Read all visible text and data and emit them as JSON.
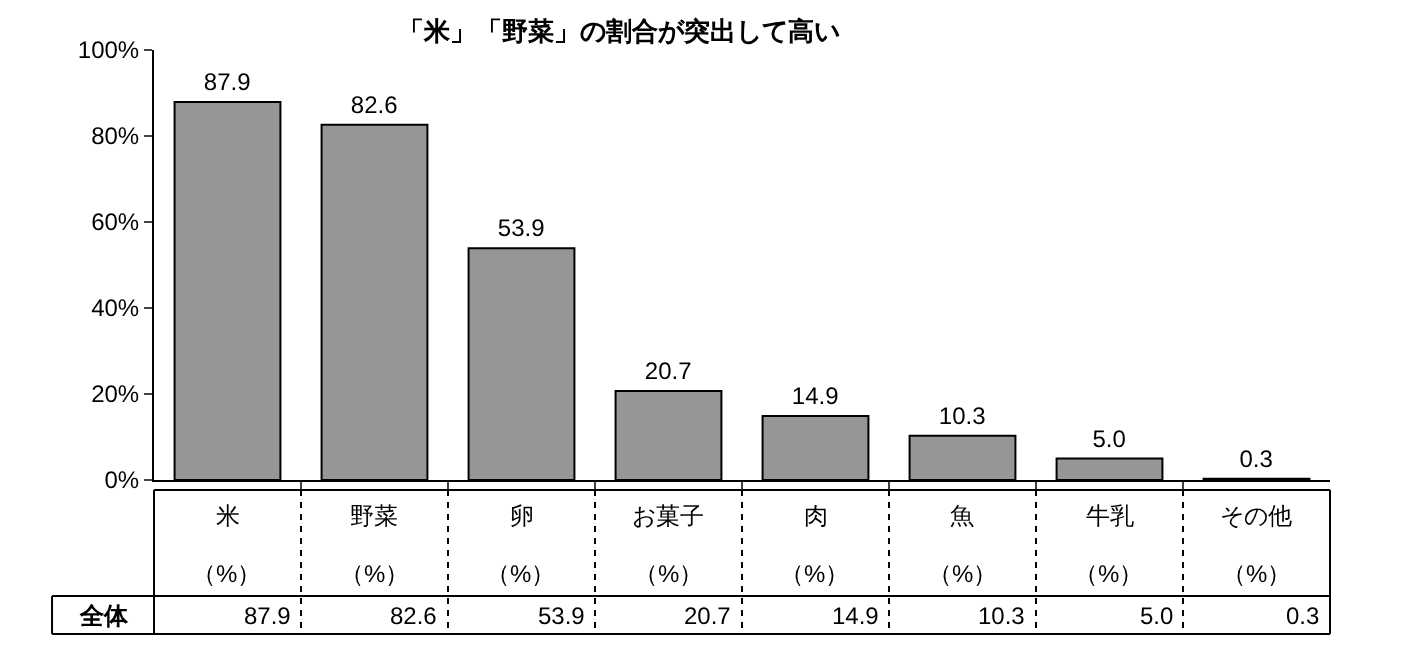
{
  "chart_data": {
    "type": "bar",
    "title": "「米」「野菜」の割合が突出して高い",
    "categories": [
      "米",
      "野菜",
      "卵",
      "お菓子",
      "肉",
      "魚",
      "牛乳",
      "その他"
    ],
    "values": [
      87.9,
      82.6,
      53.9,
      20.7,
      14.9,
      10.3,
      5.0,
      0.3
    ],
    "value_labels": [
      "87.9",
      "82.6",
      "53.9",
      "20.7",
      "14.9",
      "10.3",
      "5.0",
      "0.3"
    ],
    "color": "#969696",
    "ylim": [
      0,
      100
    ],
    "yticks": [
      {
        "value": 0,
        "label": "0%"
      },
      {
        "value": 20,
        "label": "20%"
      },
      {
        "value": 40,
        "label": "40%"
      },
      {
        "value": 60,
        "label": "60%"
      },
      {
        "value": 80,
        "label": "80%"
      },
      {
        "value": 100,
        "label": "100%"
      }
    ],
    "annotations": [
      "全体",
      "（%）",
      "（%）",
      "（%）",
      "（%）",
      "（%）",
      "（%）",
      "（%）",
      "（%）"
    ]
  }
}
